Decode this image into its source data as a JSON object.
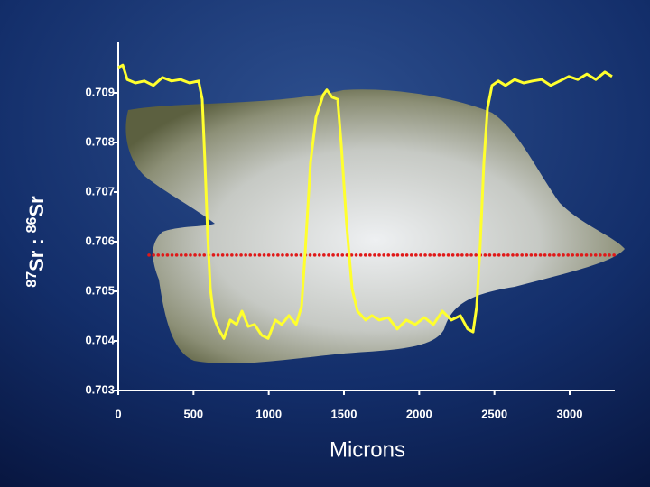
{
  "chart_data": {
    "type": "line",
    "y_label": {
      "iso1": "87",
      "el1": "Sr",
      "sep": ":",
      "iso2": "86",
      "el2": "Sr"
    },
    "x_label": "Microns",
    "x": [
      0,
      30,
      60,
      114,
      174,
      234,
      294,
      354,
      414,
      474,
      534,
      558,
      576,
      594,
      612,
      636,
      666,
      702,
      744,
      786,
      822,
      864,
      906,
      954,
      996,
      1044,
      1086,
      1134,
      1182,
      1218,
      1242,
      1278,
      1314,
      1362,
      1386,
      1422,
      1458,
      1482,
      1518,
      1554,
      1590,
      1644,
      1686,
      1734,
      1794,
      1854,
      1914,
      1974,
      2034,
      2094,
      2154,
      2214,
      2274,
      2322,
      2358,
      2382,
      2406,
      2430,
      2454,
      2484,
      2526,
      2574,
      2634,
      2694,
      2754,
      2814,
      2874,
      2934,
      2994,
      3054,
      3114,
      3174,
      3234,
      3282
    ],
    "values": [
      0.70951,
      0.70956,
      0.70927,
      0.7092,
      0.70924,
      0.70915,
      0.70931,
      0.70924,
      0.70927,
      0.7092,
      0.70924,
      0.70887,
      0.7076,
      0.70615,
      0.70505,
      0.70447,
      0.70424,
      0.70405,
      0.70442,
      0.70433,
      0.7046,
      0.70429,
      0.70433,
      0.70411,
      0.70405,
      0.70442,
      0.70433,
      0.70451,
      0.70433,
      0.70469,
      0.70578,
      0.7076,
      0.70851,
      0.70896,
      0.70906,
      0.70891,
      0.70887,
      0.70796,
      0.70633,
      0.70505,
      0.7046,
      0.70442,
      0.70451,
      0.70442,
      0.70447,
      0.70424,
      0.70442,
      0.70433,
      0.70447,
      0.70433,
      0.7046,
      0.70442,
      0.70451,
      0.70424,
      0.70418,
      0.70469,
      0.70596,
      0.7076,
      0.70869,
      0.70915,
      0.70924,
      0.70915,
      0.70927,
      0.7092,
      0.70924,
      0.70927,
      0.70915,
      0.70924,
      0.70933,
      0.70927,
      0.70938,
      0.70927,
      0.70942,
      0.70933
    ],
    "color": "#ffff2e",
    "reference_line": {
      "y": 0.70573,
      "x": [
        204,
        3312
      ],
      "color": "#e01818"
    },
    "xlim": [
      0,
      3300
    ],
    "xticks": [
      0,
      500,
      1000,
      1500,
      2000,
      2500,
      3000
    ],
    "ylim": [
      0.703,
      0.71
    ],
    "yticks": [
      0.703,
      0.704,
      0.705,
      0.706,
      0.707,
      0.708,
      0.709
    ]
  }
}
